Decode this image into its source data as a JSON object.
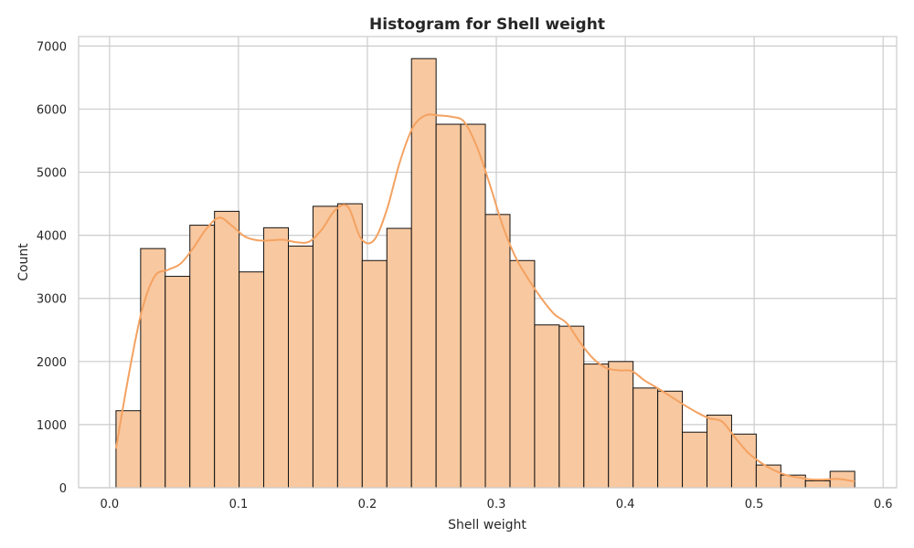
{
  "chart_data": {
    "type": "bar",
    "title": "Histogram for Shell weight",
    "xlabel": "Shell weight",
    "ylabel": "Count",
    "xlim": [
      -0.024,
      0.6105
    ],
    "ylim": [
      0,
      7150
    ],
    "xticks": [
      0.0,
      0.1,
      0.2,
      0.3,
      0.4,
      0.5,
      0.6
    ],
    "xtick_labels": [
      "0.0",
      "0.1",
      "0.2",
      "0.3",
      "0.4",
      "0.5",
      "0.6"
    ],
    "yticks": [
      0,
      1000,
      2000,
      3000,
      4000,
      5000,
      6000,
      7000
    ],
    "ytick_labels": [
      "0",
      "1000",
      "2000",
      "3000",
      "4000",
      "5000",
      "6000",
      "7000"
    ],
    "grid": true,
    "bin_edges": [
      0.005,
      0.0241,
      0.0432,
      0.0623,
      0.0814,
      0.1005,
      0.1196,
      0.1387,
      0.1578,
      0.1769,
      0.196,
      0.2151,
      0.2342,
      0.2533,
      0.2724,
      0.2915,
      0.3106,
      0.3297,
      0.3488,
      0.3679,
      0.387,
      0.4061,
      0.4252,
      0.4443,
      0.4634,
      0.4825,
      0.5016,
      0.5207,
      0.5398,
      0.5589,
      0.578
    ],
    "counts": [
      1220,
      3790,
      3350,
      4160,
      4380,
      3420,
      4120,
      3830,
      4460,
      4500,
      3600,
      4110,
      6800,
      5760,
      5760,
      4330,
      3600,
      2580,
      2560,
      1960,
      2000,
      1580,
      1530,
      880,
      1150,
      850,
      360,
      200,
      110,
      260
    ],
    "kde": {
      "x": [
        0.005,
        0.015,
        0.025,
        0.035,
        0.045,
        0.055,
        0.065,
        0.075,
        0.085,
        0.095,
        0.105,
        0.115,
        0.125,
        0.135,
        0.145,
        0.155,
        0.165,
        0.175,
        0.185,
        0.195,
        0.205,
        0.215,
        0.225,
        0.235,
        0.245,
        0.255,
        0.265,
        0.275,
        0.285,
        0.295,
        0.305,
        0.315,
        0.325,
        0.335,
        0.345,
        0.355,
        0.365,
        0.375,
        0.385,
        0.395,
        0.405,
        0.415,
        0.425,
        0.435,
        0.445,
        0.455,
        0.465,
        0.475,
        0.485,
        0.495,
        0.505,
        0.515,
        0.525,
        0.535,
        0.545,
        0.555,
        0.565,
        0.578
      ],
      "y": [
        620,
        1800,
        2800,
        3350,
        3450,
        3550,
        3800,
        4100,
        4280,
        4150,
        3980,
        3920,
        3920,
        3930,
        3890,
        3900,
        4100,
        4400,
        4450,
        3950,
        3920,
        4400,
        5150,
        5700,
        5900,
        5900,
        5880,
        5800,
        5400,
        4800,
        4150,
        3650,
        3300,
        3000,
        2750,
        2600,
        2300,
        2050,
        1900,
        1860,
        1850,
        1700,
        1580,
        1450,
        1320,
        1200,
        1100,
        1050,
        800,
        560,
        400,
        280,
        200,
        160,
        130,
        130,
        140,
        100
      ]
    },
    "colors": {
      "bar_fill": "#f8c8a0",
      "bar_edge": "#111111",
      "kde_line": "#f4a261",
      "grid": "#cccccc",
      "frame": "#cccccc",
      "text": "#262626"
    }
  }
}
